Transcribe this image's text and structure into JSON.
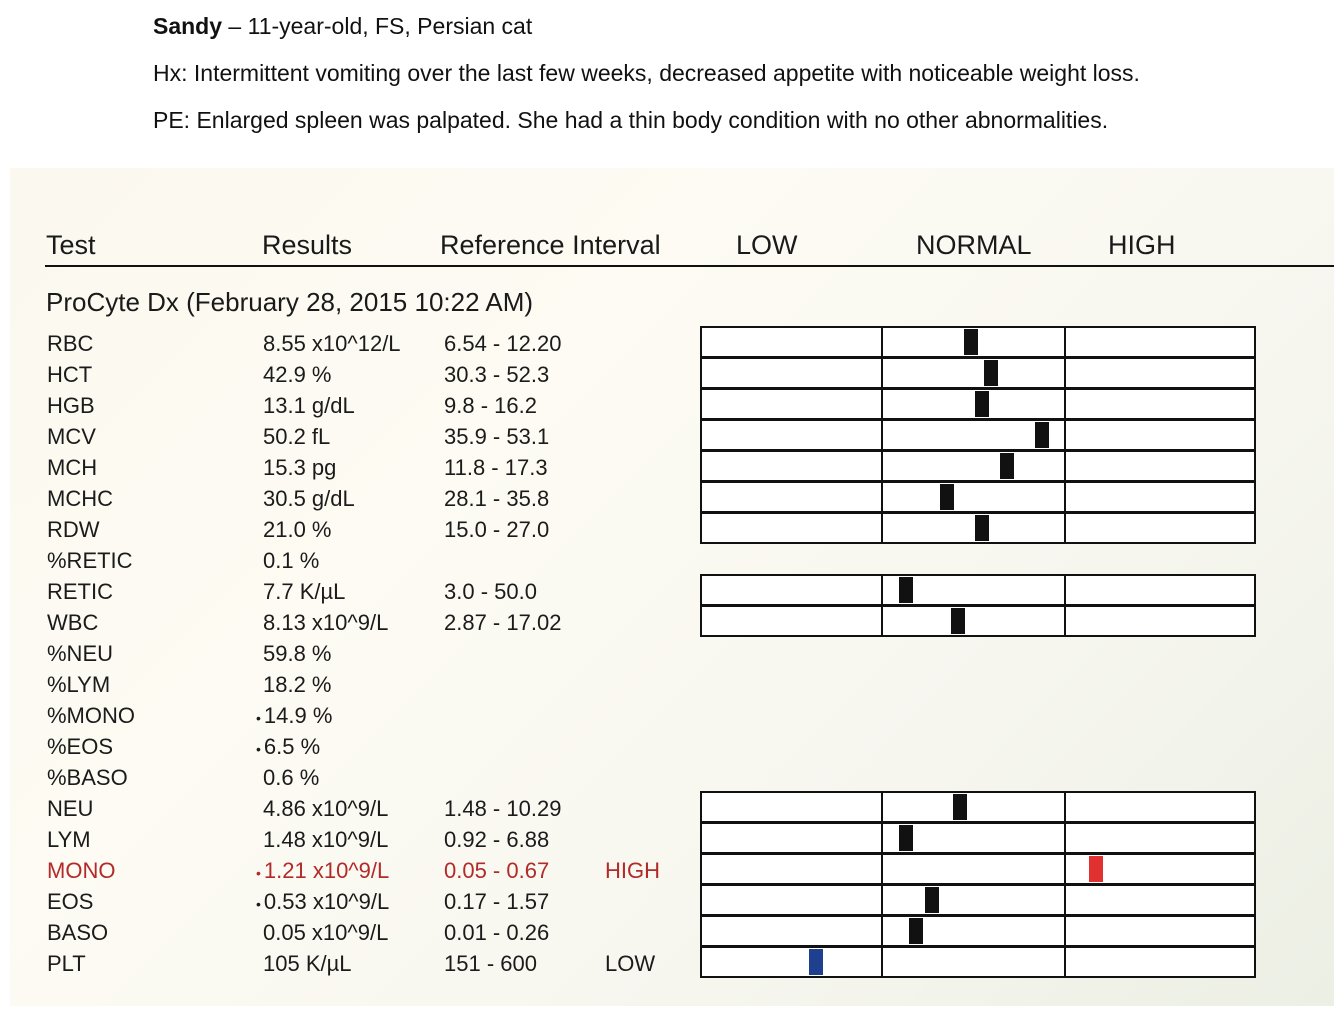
{
  "case": {
    "name": "Sandy",
    "signalment": " – 11-year-old, FS, Persian cat",
    "history": "Hx:  Intermittent vomiting over the last few weeks, decreased appetite with noticeable weight loss.",
    "exam": "PE:  Enlarged spleen was palpated. She had a thin body condition with no other abnormalities."
  },
  "report": {
    "headers": {
      "test": "Test",
      "results": "Results",
      "reference": "Reference Interval",
      "low": "LOW",
      "normal": "NORMAL",
      "high": "HIGH"
    },
    "analyzer": "ProCyte Dx (February 28, 2015 10:22 AM)",
    "rows": [
      {
        "test": "RBC",
        "result": "8.55 x10^12/L",
        "reference": "6.54 - 12.20",
        "flag": "",
        "marker": true,
        "bullet": false,
        "gauge_pos": 0.44,
        "status": "normal"
      },
      {
        "test": "HCT",
        "result": "42.9 %",
        "reference": "30.3 - 52.3",
        "flag": "",
        "marker": true,
        "bullet": false,
        "gauge_pos": 0.55,
        "status": "normal"
      },
      {
        "test": "HGB",
        "result": "13.1 g/dL",
        "reference": "9.8 - 16.2",
        "flag": "",
        "marker": true,
        "bullet": false,
        "gauge_pos": 0.5,
        "status": "normal"
      },
      {
        "test": "MCV",
        "result": "50.2 fL",
        "reference": "35.9 - 53.1",
        "flag": "",
        "marker": true,
        "bullet": false,
        "gauge_pos": 0.83,
        "status": "normal"
      },
      {
        "test": "MCH",
        "result": "15.3 pg",
        "reference": "11.8 - 17.3",
        "flag": "",
        "marker": true,
        "bullet": false,
        "gauge_pos": 0.64,
        "status": "normal"
      },
      {
        "test": "MCHC",
        "result": "30.5 g/dL",
        "reference": "28.1 - 35.8",
        "flag": "",
        "marker": true,
        "bullet": false,
        "gauge_pos": 0.31,
        "status": "normal"
      },
      {
        "test": "RDW",
        "result": "21.0 %",
        "reference": "15.0 - 27.0",
        "flag": "",
        "marker": true,
        "bullet": false,
        "gauge_pos": 0.5,
        "status": "normal"
      },
      {
        "test": "%RETIC",
        "result": "0.1 %",
        "reference": "",
        "flag": "",
        "marker": false,
        "bullet": false,
        "status": "none"
      },
      {
        "test": "RETIC",
        "result": "7.7 K/µL",
        "reference": "3.0 - 50.0",
        "flag": "",
        "marker": true,
        "bullet": false,
        "gauge_pos": 0.09,
        "status": "normal"
      },
      {
        "test": "WBC",
        "result": "8.13 x10^9/L",
        "reference": "2.87 - 17.02",
        "flag": "",
        "marker": true,
        "bullet": false,
        "gauge_pos": 0.37,
        "status": "normal"
      },
      {
        "test": "%NEU",
        "result": "59.8 %",
        "reference": "",
        "flag": "",
        "marker": false,
        "bullet": false,
        "status": "none"
      },
      {
        "test": "%LYM",
        "result": "18.2 %",
        "reference": "",
        "flag": "",
        "marker": false,
        "bullet": false,
        "status": "none"
      },
      {
        "test": "%MONO",
        "result": "14.9 %",
        "reference": "",
        "flag": "",
        "marker": false,
        "bullet": true,
        "status": "none"
      },
      {
        "test": "%EOS",
        "result": "6.5 %",
        "reference": "",
        "flag": "",
        "marker": false,
        "bullet": true,
        "status": "none"
      },
      {
        "test": "%BASO",
        "result": "0.6 %",
        "reference": "",
        "flag": "",
        "marker": false,
        "bullet": false,
        "status": "none"
      },
      {
        "test": "NEU",
        "result": "4.86 x10^9/L",
        "reference": "1.48 - 10.29",
        "flag": "",
        "marker": true,
        "bullet": false,
        "gauge_pos": 0.38,
        "status": "normal"
      },
      {
        "test": "LYM",
        "result": "1.48 x10^9/L",
        "reference": "0.92 - 6.88",
        "flag": "",
        "marker": true,
        "bullet": false,
        "gauge_pos": 0.09,
        "status": "normal"
      },
      {
        "test": "MONO",
        "result": "1.21 x10^9/L",
        "reference": "0.05 - 0.67",
        "flag": "HIGH",
        "marker": true,
        "bullet": true,
        "gauge_pos": 0.12,
        "status": "high"
      },
      {
        "test": "EOS",
        "result": "0.53 x10^9/L",
        "reference": "0.17 - 1.57",
        "flag": "",
        "marker": true,
        "bullet": true,
        "gauge_pos": 0.23,
        "status": "normal"
      },
      {
        "test": "BASO",
        "result": "0.05 x10^9/L",
        "reference": "0.01 - 0.26",
        "flag": "",
        "marker": true,
        "bullet": false,
        "gauge_pos": 0.14,
        "status": "normal"
      },
      {
        "test": "PLT",
        "result": "105 K/µL",
        "reference": "151 - 600",
        "flag": "LOW",
        "marker": true,
        "bullet": false,
        "gauge_pos": 0.59,
        "status": "low"
      }
    ]
  },
  "colors": {
    "normal_marker": "#111111",
    "high_marker": "#e03030",
    "low_marker": "#1f3f8f",
    "high_text": "#b22a2a"
  }
}
